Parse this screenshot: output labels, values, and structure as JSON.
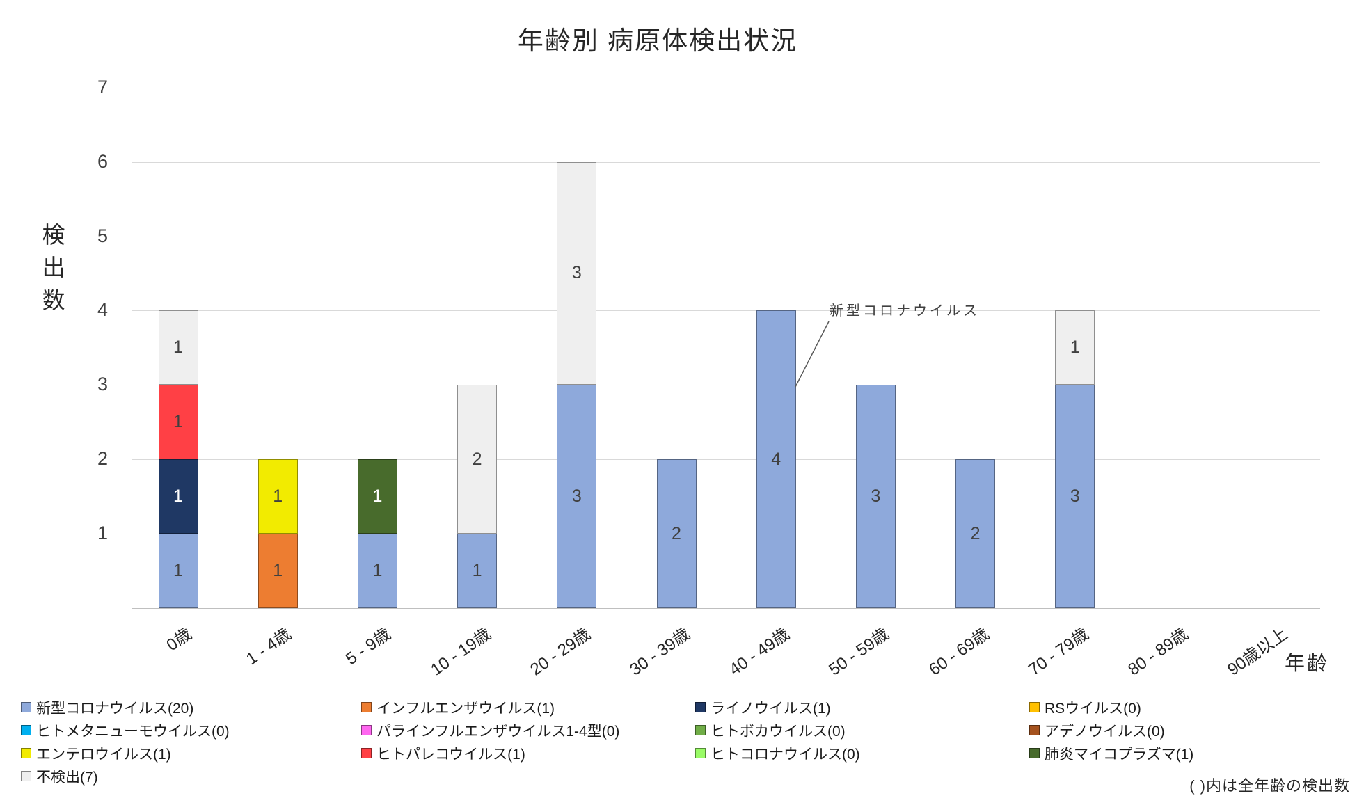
{
  "title": "年齢別 病原体検出状況",
  "y_axis": {
    "title": "検出数",
    "ticks": [
      7,
      6,
      5,
      4,
      3,
      2,
      1
    ],
    "max": 7
  },
  "x_axis": {
    "title": "年齢"
  },
  "annotation": {
    "text": "新型コロナウイルス"
  },
  "footnote": "( )内は全年齢の検出数",
  "colors": {
    "gridline": "#D9D9D9",
    "axis_line": "#BFBFBF",
    "label_dark": "#404040",
    "label_light": "#FFFFFF"
  },
  "chart_data": {
    "type": "bar",
    "stacked": true,
    "title": "年齢別 病原体検出状況",
    "xlabel": "年齢",
    "ylabel": "検出数",
    "ylim": [
      0,
      7
    ],
    "grid": true,
    "legend_position": "bottom",
    "legend_note": "( )内は全年齢の検出数",
    "categories": [
      "0歳",
      "1 - 4歳",
      "5 - 9歳",
      "10 - 19歳",
      "20 - 29歳",
      "30 - 39歳",
      "40 - 49歳",
      "50 - 59歳",
      "60 - 69歳",
      "70 - 79歳",
      "80 - 89歳",
      "90歳以上"
    ],
    "series": [
      {
        "name": "新型コロナウイルス",
        "total": 20,
        "label": "新型コロナウイルス(20)",
        "color": "#8EA9DB",
        "label_color": "#404040",
        "values": [
          1,
          0,
          1,
          1,
          3,
          2,
          4,
          3,
          2,
          3,
          0,
          0
        ]
      },
      {
        "name": "インフルエンザウイルス",
        "total": 1,
        "label": "インフルエンザウイルス(1)",
        "color": "#ED7D31",
        "label_color": "#404040",
        "values": [
          0,
          1,
          0,
          0,
          0,
          0,
          0,
          0,
          0,
          0,
          0,
          0
        ]
      },
      {
        "name": "ライノウイルス",
        "total": 1,
        "label": "ライノウイルス(1)",
        "color": "#1F3864",
        "label_color": "#FFFFFF",
        "values": [
          1,
          0,
          0,
          0,
          0,
          0,
          0,
          0,
          0,
          0,
          0,
          0
        ]
      },
      {
        "name": "RSウイルス",
        "total": 0,
        "label": "RSウイルス(0)",
        "color": "#FFC000",
        "label_color": "#404040",
        "values": [
          0,
          0,
          0,
          0,
          0,
          0,
          0,
          0,
          0,
          0,
          0,
          0
        ]
      },
      {
        "name": "ヒトメタニューモウイルス",
        "total": 0,
        "label": "ヒトメタニューモウイルス(0)",
        "color": "#00B0F0",
        "label_color": "#404040",
        "values": [
          0,
          0,
          0,
          0,
          0,
          0,
          0,
          0,
          0,
          0,
          0,
          0
        ]
      },
      {
        "name": "パラインフルエンザウイルス1-4型",
        "total": 0,
        "label": "パラインフルエンザウイルス1-4型(0)",
        "color": "#FF66F0",
        "label_color": "#404040",
        "values": [
          0,
          0,
          0,
          0,
          0,
          0,
          0,
          0,
          0,
          0,
          0,
          0
        ]
      },
      {
        "name": "ヒトボカウイルス",
        "total": 0,
        "label": "ヒトボカウイルス(0)",
        "color": "#70AD47",
        "label_color": "#404040",
        "values": [
          0,
          0,
          0,
          0,
          0,
          0,
          0,
          0,
          0,
          0,
          0,
          0
        ]
      },
      {
        "name": "アデノウイルス",
        "total": 0,
        "label": "アデノウイルス(0)",
        "color": "#A5521E",
        "label_color": "#404040",
        "values": [
          0,
          0,
          0,
          0,
          0,
          0,
          0,
          0,
          0,
          0,
          0,
          0
        ]
      },
      {
        "name": "エンテロウイルス",
        "total": 1,
        "label": "エンテロウイルス(1)",
        "color": "#F2EB00",
        "label_color": "#404040",
        "values": [
          0,
          1,
          0,
          0,
          0,
          0,
          0,
          0,
          0,
          0,
          0,
          0
        ]
      },
      {
        "name": "ヒトパレコウイルス",
        "total": 1,
        "label": "ヒトパレコウイルス(1)",
        "color": "#FF4045",
        "label_color": "#404040",
        "values": [
          1,
          0,
          0,
          0,
          0,
          0,
          0,
          0,
          0,
          0,
          0,
          0
        ]
      },
      {
        "name": "ヒトコロナウイルス",
        "total": 0,
        "label": "ヒトコロナウイルス(0)",
        "color": "#99FB66",
        "label_color": "#404040",
        "values": [
          0,
          0,
          0,
          0,
          0,
          0,
          0,
          0,
          0,
          0,
          0,
          0
        ]
      },
      {
        "name": "肺炎マイコプラズマ",
        "total": 1,
        "label": "肺炎マイコプラズマ(1)",
        "color": "#486B2C",
        "label_color": "#FFFFFF",
        "values": [
          0,
          0,
          1,
          0,
          0,
          0,
          0,
          0,
          0,
          0,
          0,
          0
        ]
      },
      {
        "name": "不検出",
        "total": 7,
        "label": "不検出(7)",
        "color": "#EFEFEF",
        "label_color": "#404040",
        "values": [
          1,
          0,
          0,
          2,
          3,
          0,
          0,
          0,
          0,
          1,
          0,
          0
        ]
      }
    ]
  }
}
